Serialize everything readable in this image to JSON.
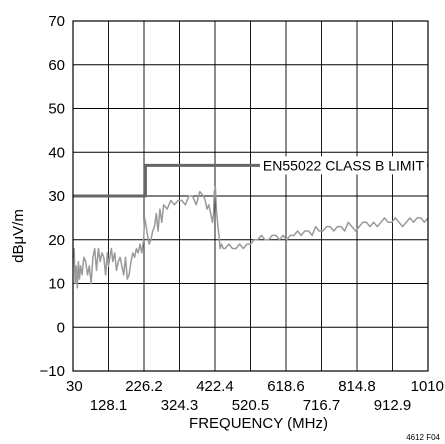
{
  "chart_data": {
    "type": "line",
    "title": "",
    "xlabel": "FREQUENCY (MHz)",
    "ylabel": "dBμV/m",
    "xlim": [
      30,
      1010
    ],
    "ylim": [
      -10,
      70
    ],
    "grid": true,
    "x_ticks_upper": [
      "30",
      "226.2",
      "422.4",
      "618.6",
      "814.8",
      "1010"
    ],
    "x_ticks_lower": [
      "128.1",
      "324.3",
      "520.5",
      "716.7",
      "912.9"
    ],
    "y_ticks": [
      "70",
      "60",
      "50",
      "40",
      "30",
      "20",
      "10",
      "0",
      "−10"
    ],
    "annotation": "EN55022 CLASS B LIMIT",
    "figure_id": "4612 F04",
    "series": [
      {
        "role": "limit",
        "color": "#666666",
        "x": [
          30,
          230,
          230,
          1010
        ],
        "y": [
          30,
          30,
          37,
          37
        ]
      },
      {
        "role": "measurement",
        "color": "#999999",
        "x": [
          30,
          33,
          36,
          39,
          42,
          45,
          48,
          51,
          55,
          60,
          65,
          70,
          75,
          80,
          85,
          90,
          95,
          100,
          105,
          110,
          115,
          120,
          125,
          128,
          132,
          136,
          140,
          145,
          150,
          155,
          160,
          165,
          170,
          175,
          180,
          185,
          190,
          195,
          200,
          205,
          210,
          215,
          220,
          225,
          228,
          232,
          236,
          240,
          245,
          250,
          255,
          260,
          265,
          270,
          275,
          280,
          290,
          300,
          310,
          320,
          330,
          340,
          350,
          360,
          370,
          380,
          390,
          395,
          400,
          405,
          410,
          415,
          418,
          420,
          423,
          426,
          430,
          433,
          436,
          440,
          445,
          450,
          460,
          470,
          480,
          490,
          500,
          510,
          520,
          530,
          540,
          550,
          560,
          570,
          580,
          590,
          600,
          610,
          620,
          630,
          640,
          650,
          660,
          670,
          680,
          690,
          700,
          710,
          720,
          730,
          740,
          750,
          760,
          770,
          780,
          790,
          800,
          810,
          820,
          830,
          840,
          850,
          860,
          870,
          880,
          890,
          900,
          910,
          920,
          930,
          940,
          950,
          960,
          970,
          980,
          990,
          1000,
          1010
        ],
        "y": [
          16,
          18,
          10,
          14,
          9,
          15,
          11,
          14,
          12,
          16,
          15,
          12,
          14,
          10,
          16,
          18,
          13,
          18,
          15,
          17,
          16,
          12,
          17,
          14,
          16,
          18,
          15,
          17,
          13,
          15,
          16,
          14,
          12,
          16,
          11,
          12,
          15,
          17,
          16,
          18,
          17,
          19,
          17,
          20,
          25,
          23,
          21,
          19,
          20,
          22,
          23,
          26,
          22,
          27,
          24,
          28,
          27,
          29,
          28,
          29,
          29,
          28,
          30,
          30,
          28,
          31,
          30,
          29,
          27,
          28,
          26,
          24,
          26,
          31,
          32,
          27,
          23,
          21,
          18,
          19,
          18,
          18,
          19,
          18,
          18,
          19,
          18,
          19,
          19,
          20,
          20,
          21,
          20,
          20,
          21,
          21,
          20,
          21,
          20,
          21,
          21,
          22,
          21,
          22,
          22,
          21,
          23,
          22,
          22,
          23,
          23,
          22,
          23,
          23,
          22,
          24,
          23,
          22,
          23,
          24,
          24,
          23,
          24,
          23,
          24,
          25,
          24,
          24,
          25,
          24,
          23,
          24,
          25,
          24,
          25,
          25,
          24,
          25
        ]
      }
    ]
  }
}
